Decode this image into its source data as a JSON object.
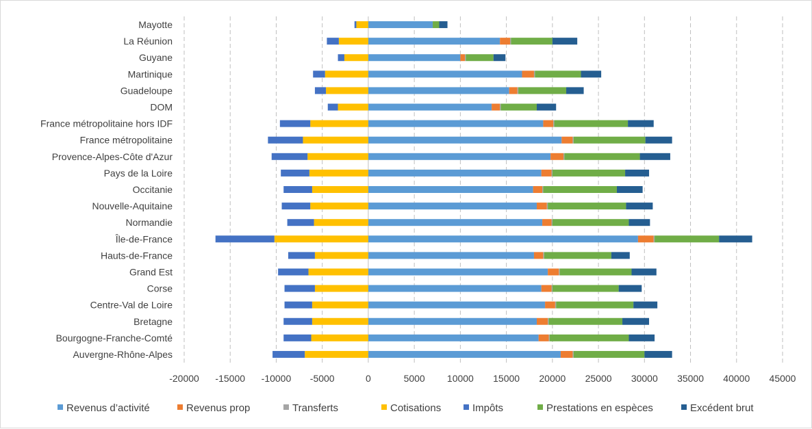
{
  "chart_data": {
    "type": "bar",
    "orientation": "horizontal",
    "stacked": true,
    "title": "",
    "xlabel": "",
    "ylabel": "",
    "xlim": [
      -20000,
      45000
    ],
    "x_ticks": [
      -20000,
      -15000,
      -10000,
      -5000,
      0,
      5000,
      10000,
      15000,
      20000,
      25000,
      30000,
      35000,
      40000,
      45000
    ],
    "x_tick_labels": [
      "-20000",
      "-15000",
      "-10000",
      "-5000",
      "0",
      "5000",
      "10000",
      "15000",
      "20000",
      "25000",
      "30000",
      "35000",
      "40000",
      "45000"
    ],
    "grid": "vertical dashed",
    "legend_position": "bottom",
    "categories": [
      "Mayotte",
      "La Réunion",
      "Guyane",
      "Martinique",
      "Guadeloupe",
      "DOM",
      "France métropolitaine hors IDF",
      "France métropolitaine",
      "Provence-Alpes-Côte d'Azur",
      "Pays de la Loire",
      "Occitanie",
      "Nouvelle-Aquitaine",
      "Normandie",
      "Île-de-France",
      "Hauts-de-France",
      "Grand Est",
      "Corse",
      "Centre-Val de Loire",
      "Bretagne",
      "Bourgogne-Franche-Comté",
      "Auvergne-Rhône-Alpes"
    ],
    "series": [
      {
        "name": "Revenus d’activité",
        "color": "#5b9bd5",
        "values": [
          7000,
          14300,
          10000,
          16700,
          15300,
          13400,
          19000,
          21000,
          19800,
          18800,
          17900,
          18300,
          18900,
          29300,
          18000,
          19500,
          18800,
          19200,
          18300,
          18500,
          20900
        ]
      },
      {
        "name": "Revenus prop",
        "color": "#ed7d31",
        "values": [
          0,
          1100,
          500,
          1300,
          900,
          900,
          1100,
          1200,
          1400,
          1100,
          1000,
          1100,
          1000,
          1700,
          1000,
          1200,
          1100,
          1100,
          1200,
          1100,
          1300
        ]
      },
      {
        "name": "Transferts",
        "color": "#a5a5a5",
        "values": [
          0,
          100,
          100,
          100,
          100,
          100,
          100,
          100,
          100,
          100,
          100,
          100,
          100,
          100,
          100,
          100,
          100,
          100,
          100,
          100,
          100
        ]
      },
      {
        "name": "Cotisations",
        "color": "#ffc000",
        "values": [
          -1300,
          -3200,
          -2600,
          -4700,
          -4600,
          -3300,
          -6300,
          -7100,
          -6600,
          -6400,
          -6100,
          -6300,
          -5900,
          -10200,
          -5800,
          -6500,
          -5800,
          -6100,
          -6100,
          -6200,
          -6900
        ]
      },
      {
        "name": "Impôts",
        "color": "#4472c4",
        "values": [
          -200,
          -1300,
          -700,
          -1300,
          -1200,
          -1100,
          -3300,
          -3800,
          -3900,
          -3100,
          -3100,
          -3100,
          -2900,
          -6400,
          -2900,
          -3300,
          -3300,
          -3000,
          -3100,
          -3000,
          -3500
        ]
      },
      {
        "name": "Prestations en espèces",
        "color": "#70ad47",
        "values": [
          700,
          4500,
          3000,
          5000,
          5200,
          3900,
          8000,
          7800,
          8200,
          7900,
          8000,
          8500,
          8300,
          7000,
          7300,
          7800,
          7200,
          8400,
          8000,
          8600,
          7700
        ]
      },
      {
        "name": "Excédent brut",
        "color": "#255e91",
        "values": [
          900,
          2700,
          1300,
          2200,
          1900,
          2100,
          2800,
          2900,
          3300,
          2600,
          2800,
          2900,
          2300,
          3600,
          2000,
          2700,
          2500,
          2600,
          2900,
          2800,
          3000
        ]
      }
    ]
  }
}
